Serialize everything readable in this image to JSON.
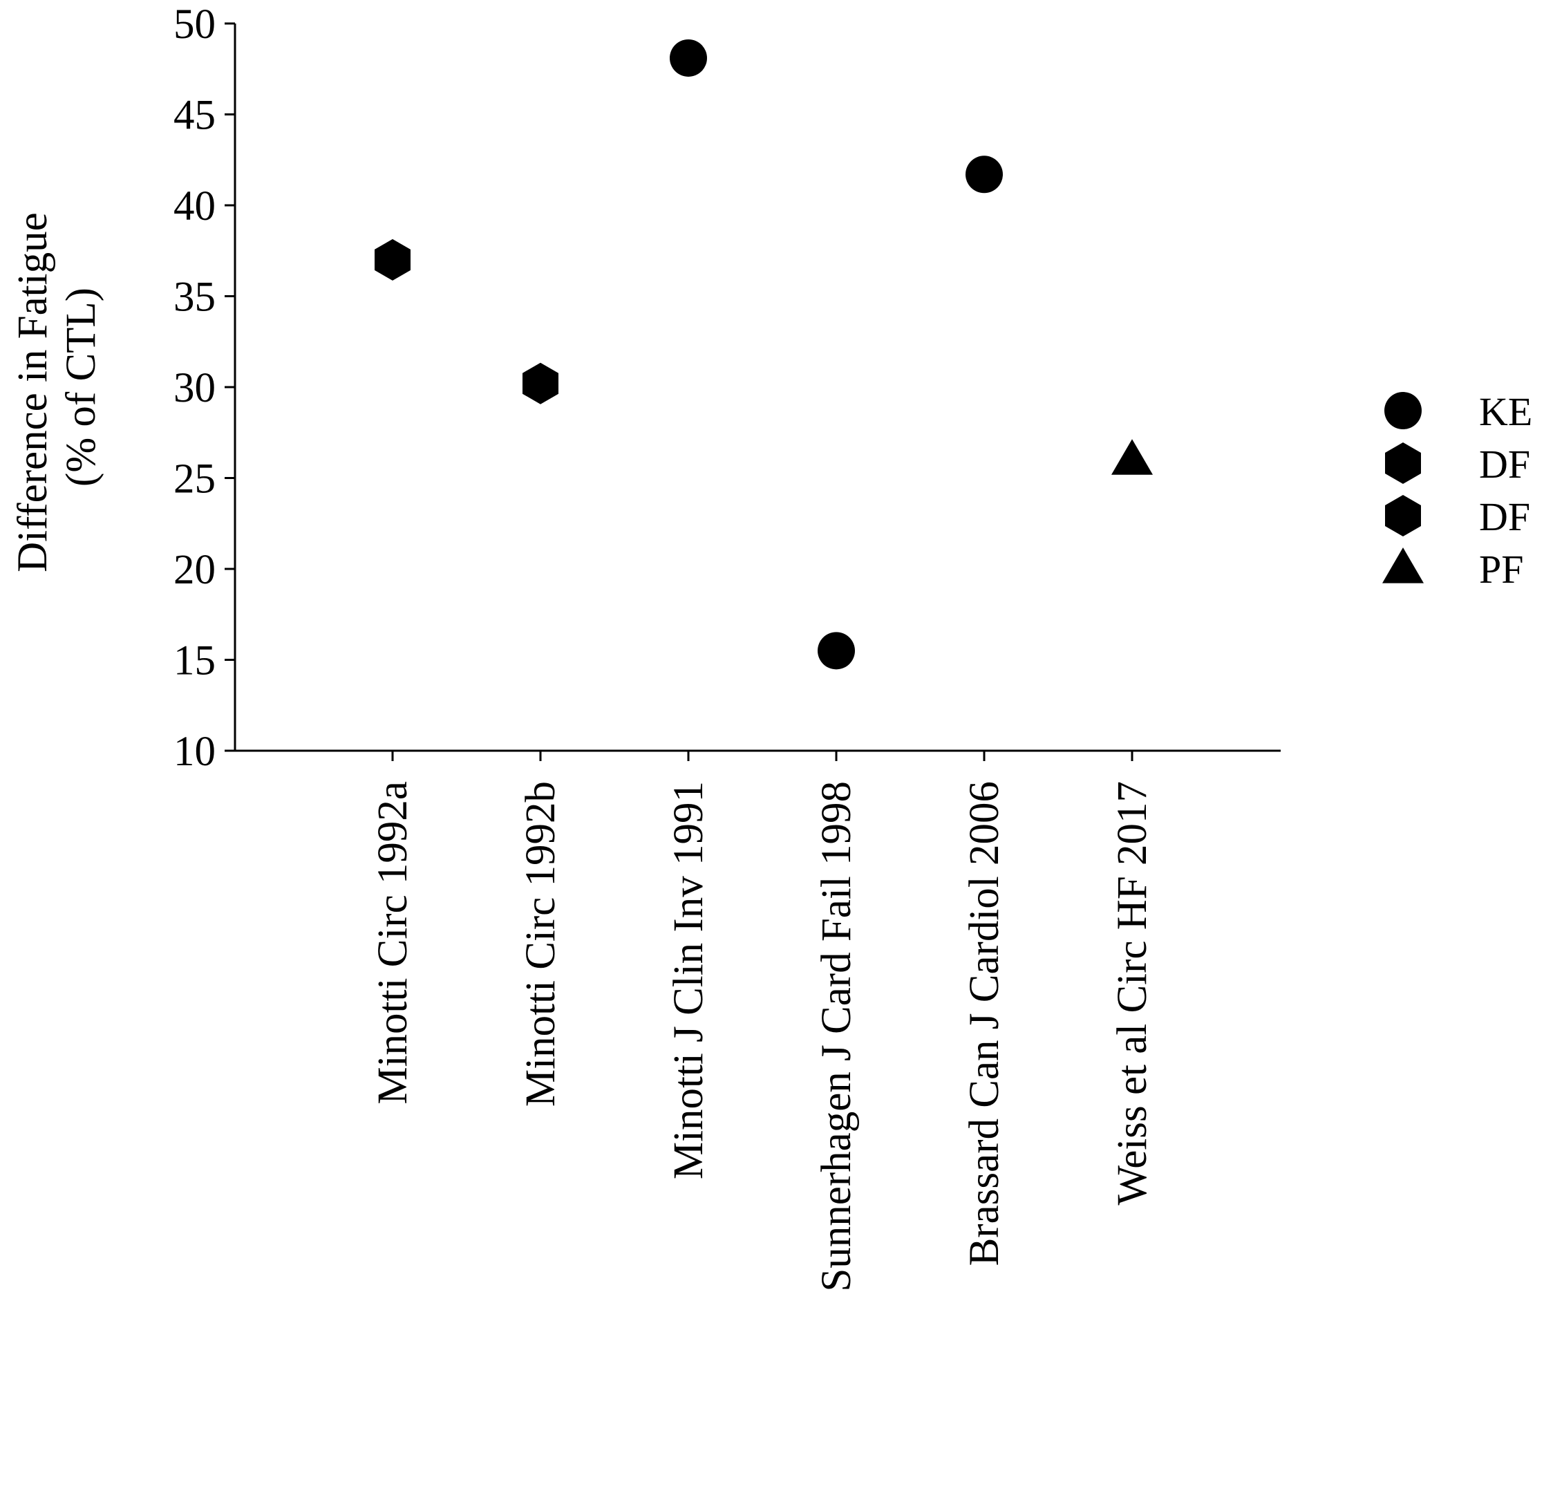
{
  "chart_data": {
    "type": "scatter",
    "title": "",
    "xlabel": "",
    "ylabel_lines": [
      "Difference in Fatigue",
      "(% of CTL)"
    ],
    "ylim": [
      10,
      50
    ],
    "yticks": [
      10,
      15,
      20,
      25,
      30,
      35,
      40,
      45,
      50
    ],
    "grid": false,
    "legend_position": "right",
    "categories": [
      "Minotti Circ 1992a",
      "Minotti Circ 1992b",
      "Minotti J Clin Inv 1991",
      "Sunnerhagen J Card Fail 1998",
      "Brassard Can J Cardiol 2006",
      "Weiss et al Circ HF 2017"
    ],
    "series": [
      {
        "name": "KE",
        "marker": "circle",
        "points": [
          {
            "category": "Minotti J Clin Inv 1991",
            "y": 48.1
          },
          {
            "category": "Sunnerhagen J Card Fail 1998",
            "y": 15.5
          },
          {
            "category": "Brassard Can J Cardiol 2006",
            "y": 41.7
          }
        ]
      },
      {
        "name": "DF",
        "marker": "hexagon",
        "points": [
          {
            "category": "Minotti Circ 1992a",
            "y": 37.0
          }
        ]
      },
      {
        "name": "DF",
        "marker": "hexagon",
        "points": [
          {
            "category": "Minotti Circ 1992b",
            "y": 30.2
          }
        ]
      },
      {
        "name": "PF",
        "marker": "triangle",
        "points": [
          {
            "category": "Weiss et al Circ HF 2017",
            "y": 26.0
          }
        ]
      }
    ],
    "marker_color": "#000000"
  }
}
